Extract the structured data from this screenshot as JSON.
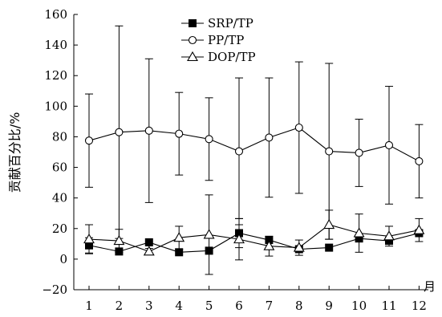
{
  "chart_data": {
    "type": "line",
    "title": "",
    "xlabel": "",
    "x_unit": "月",
    "ylabel": "贡献百分比/%",
    "ylim": [
      -20,
      160
    ],
    "yticks": [
      -20,
      0,
      20,
      40,
      60,
      80,
      100,
      120,
      140,
      160
    ],
    "categories": [
      "1",
      "2",
      "3",
      "4",
      "5",
      "6",
      "7",
      "8",
      "9",
      "10",
      "11",
      "12"
    ],
    "legend_position": "top-center",
    "grid": false,
    "series": [
      {
        "name": "SRP/TP",
        "marker": "filled-square",
        "values": [
          9,
          5,
          11,
          4.5,
          5.5,
          17,
          12.5,
          6.5,
          7.5,
          13.5,
          12,
          17
        ],
        "error": [
          5,
          0,
          0,
          0,
          0,
          9.5,
          0,
          0,
          0,
          0,
          0,
          0
        ]
      },
      {
        "name": "PP/TP",
        "marker": "open-circle",
        "values": [
          77.5,
          83,
          84,
          82,
          78.5,
          70.5,
          79.5,
          86,
          70.5,
          69.5,
          74.5,
          64
        ],
        "error": [
          30.5,
          69.5,
          47,
          27,
          27,
          48,
          39,
          43,
          57.5,
          22,
          38.5,
          24
        ]
      },
      {
        "name": "DOP/TP",
        "marker": "open-triangle",
        "values": [
          13,
          12,
          5,
          14,
          16,
          13,
          8.5,
          7.5,
          22.5,
          17,
          15,
          19
        ],
        "error": [
          9.5,
          7.5,
          2,
          7.5,
          26,
          13.5,
          6.5,
          5,
          9.5,
          12.5,
          6.5,
          7.5
        ]
      }
    ]
  }
}
